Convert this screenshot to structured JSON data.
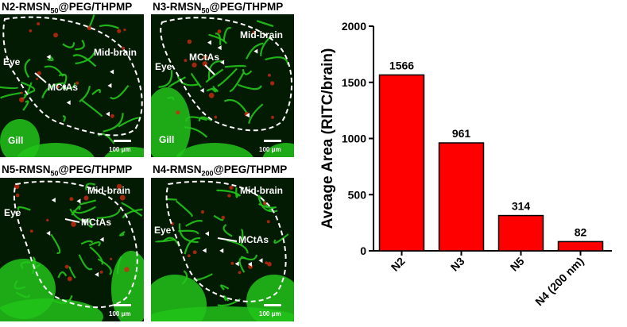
{
  "panels": [
    {
      "id": "p1",
      "title_prefix": "N2-RMSN",
      "title_sub": "50",
      "title_suffix": "@PEG/THPMP",
      "labels": {
        "region": "Mid-brain",
        "eye": "Eye",
        "vessel": "MCtAs",
        "gill": "Gill",
        "scale": "100 μm"
      }
    },
    {
      "id": "p2",
      "title_prefix": "N3-RMSN",
      "title_sub": "50",
      "title_suffix": "@PEG/THPMP",
      "labels": {
        "region": "Mid-brain",
        "eye": "Eye",
        "vessel": "MCtAs",
        "gill": "Gill",
        "scale": "100 μm"
      }
    },
    {
      "id": "p3",
      "title_prefix": "N5-RMSN",
      "title_sub": "50",
      "title_suffix": "@PEG/THPMP",
      "labels": {
        "region": "Mid-brain",
        "eye": "Eye",
        "vessel": "MCtAs",
        "gill": "",
        "scale": "100 μm"
      }
    },
    {
      "id": "p4",
      "title_prefix": "N4-RMSN",
      "title_sub": "200",
      "title_suffix": "@PEG/THPMP",
      "labels": {
        "region": "Mid-brain",
        "eye": "Eye",
        "vessel": "MCtAs",
        "gill": "",
        "scale": "100 μm"
      }
    }
  ],
  "colors": {
    "bar_fill": "#ff0000",
    "bar_stroke": "#000000",
    "tissue_green": "#22c41a",
    "vessel_red": "#cc2a10"
  },
  "chart_data": {
    "type": "bar",
    "categories": [
      "N2",
      "N3",
      "N5",
      "N4 (200 nm)"
    ],
    "values": [
      1566,
      961,
      314,
      82
    ],
    "data_labels": [
      "1566",
      "961",
      "314",
      "82"
    ],
    "ylabel": "Aveage Area (RITC/brain)",
    "xlabel": "",
    "ylim": [
      0,
      2000
    ],
    "yticks": [
      0,
      500,
      1000,
      1500,
      2000
    ],
    "grid": false,
    "legend": "none"
  }
}
